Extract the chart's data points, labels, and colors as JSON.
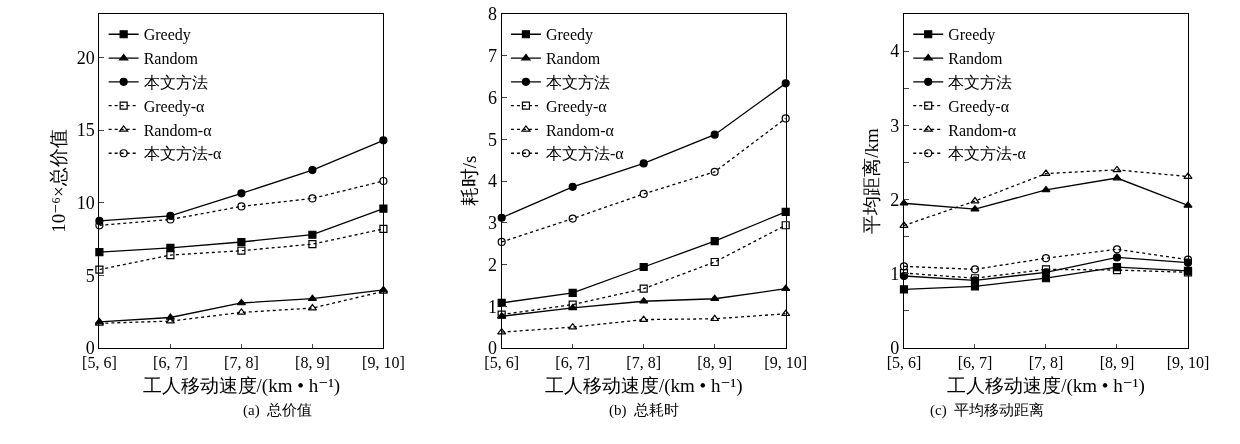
{
  "chart_data": [
    {
      "type": "line",
      "ylabel": "10⁻⁶×总价值",
      "xlabel": "工人移动速度/(km • h⁻¹)",
      "annotations": [
        "(a)  总价值"
      ],
      "legend": "top left",
      "categories": [
        "[5, 6]",
        "[6, 7]",
        "[7, 8]",
        "[8, 9]",
        "[9, 10]"
      ],
      "ylim": [
        0,
        23
      ],
      "yticks": [
        0,
        5,
        10,
        15,
        20
      ],
      "series": [
        {
          "name": "Greedy",
          "color": "#000000",
          "marker": "square",
          "line_style": "solid",
          "values": [
            6.6,
            6.9,
            7.3,
            7.8,
            9.6
          ]
        },
        {
          "name": "Random",
          "color": "#000000",
          "marker": "triangle",
          "line_style": "solid",
          "values": [
            1.8,
            2.1,
            3.1,
            3.4,
            4.0
          ]
        },
        {
          "name": "本文方法",
          "color": "#000000",
          "marker": "circle",
          "line_style": "solid",
          "values": [
            8.75,
            9.1,
            10.65,
            12.25,
            14.3
          ]
        },
        {
          "name": "Greedy-α",
          "color": "#000000",
          "marker": "square-open",
          "line_style": "dotted",
          "values": [
            5.4,
            6.4,
            6.7,
            7.15,
            8.2
          ]
        },
        {
          "name": "Random-α",
          "color": "#000000",
          "marker": "triangle-open",
          "line_style": "dotted",
          "values": [
            1.7,
            1.85,
            2.45,
            2.75,
            3.9
          ]
        },
        {
          "name": "本文方法-α",
          "color": "#000000",
          "marker": "circle-open",
          "line_style": "dotted",
          "values": [
            8.45,
            8.85,
            9.75,
            10.3,
            11.5
          ]
        }
      ]
    },
    {
      "type": "line",
      "ylabel": "耗时/s",
      "xlabel": "工人移动速度/(km • h⁻¹)",
      "annotations": [
        "(b)  总耗时"
      ],
      "legend": "top left",
      "categories": [
        "[5, 6]",
        "[6, 7]",
        "[7, 8]",
        "[8, 9]",
        "[9, 10]"
      ],
      "ylim": [
        0,
        8
      ],
      "yticks": [
        0,
        1,
        2,
        3,
        4,
        5,
        6,
        7,
        8
      ],
      "series": [
        {
          "name": "Greedy",
          "color": "#000000",
          "marker": "square",
          "line_style": "solid",
          "values": [
            1.08,
            1.32,
            1.94,
            2.56,
            3.26
          ]
        },
        {
          "name": "Random",
          "color": "#000000",
          "marker": "triangle",
          "line_style": "solid",
          "values": [
            0.76,
            0.96,
            1.12,
            1.18,
            1.42
          ]
        },
        {
          "name": "本文方法",
          "color": "#000000",
          "marker": "circle",
          "line_style": "solid",
          "values": [
            3.12,
            3.86,
            4.42,
            5.11,
            6.34
          ]
        },
        {
          "name": "Greedy-α",
          "color": "#000000",
          "marker": "square-open",
          "line_style": "dotted",
          "values": [
            0.8,
            1.04,
            1.42,
            2.06,
            2.94
          ]
        },
        {
          "name": "Random-α",
          "color": "#000000",
          "marker": "triangle-open",
          "line_style": "dotted",
          "values": [
            0.38,
            0.5,
            0.68,
            0.7,
            0.82
          ]
        },
        {
          "name": "本文方法-α",
          "color": "#000000",
          "marker": "circle-open",
          "line_style": "dotted",
          "values": [
            2.54,
            3.1,
            3.69,
            4.22,
            5.5
          ]
        }
      ]
    },
    {
      "type": "line",
      "ylabel": "平均距离/km",
      "xlabel": "工人移动速度/(km • h⁻¹)",
      "annotations": [
        "(c)  平均移动距离"
      ],
      "legend": "top left",
      "categories": [
        "[5, 6]",
        "[6, 7]",
        "[7, 8]",
        "[8, 9]",
        "[9, 10]"
      ],
      "ylim": [
        0,
        4.5
      ],
      "yticks": [
        0,
        {
          "value": 0.5,
          "label": null
        },
        1,
        {
          "value": 1.5,
          "label": null
        },
        2,
        {
          "value": 2.5,
          "label": null
        },
        3,
        {
          "value": 3.5,
          "label": null
        },
        4
      ],
      "series": [
        {
          "name": "Greedy",
          "color": "#000000",
          "marker": "square",
          "line_style": "solid",
          "values": [
            0.79,
            0.83,
            0.94,
            1.09,
            1.04
          ]
        },
        {
          "name": "Random",
          "color": "#000000",
          "marker": "triangle",
          "line_style": "solid",
          "values": [
            1.95,
            1.87,
            2.13,
            2.29,
            1.92
          ]
        },
        {
          "name": "本文方法",
          "color": "#000000",
          "marker": "circle",
          "line_style": "solid",
          "values": [
            0.97,
            0.91,
            1.02,
            1.22,
            1.15
          ]
        },
        {
          "name": "Greedy-α",
          "color": "#000000",
          "marker": "square-open",
          "line_style": "dotted",
          "values": [
            1.01,
            0.94,
            1.06,
            1.05,
            1.02
          ]
        },
        {
          "name": "Random-α",
          "color": "#000000",
          "marker": "triangle-open",
          "line_style": "dotted",
          "values": [
            1.65,
            1.98,
            2.35,
            2.4,
            2.31
          ]
        },
        {
          "name": "本文方法-α",
          "color": "#000000",
          "marker": "circle-open",
          "line_style": "dotted",
          "values": [
            1.1,
            1.06,
            1.21,
            1.33,
            1.19
          ]
        }
      ]
    }
  ]
}
